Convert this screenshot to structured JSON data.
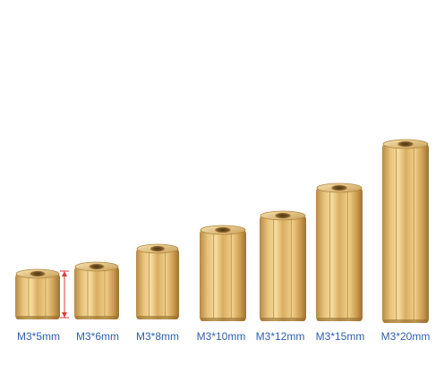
{
  "colors": {
    "brass_light": "#f3d38e",
    "brass_mid": "#d6ab5c",
    "brass_dark": "#9c7230",
    "label_text": "#2f5fb0",
    "measure_marker": "#e23b3b"
  },
  "spacers": [
    {
      "label": "M3*5mm"
    },
    {
      "label": "M3*6mm"
    },
    {
      "label": "M3*8mm"
    },
    {
      "label": "M3*10mm"
    },
    {
      "label": "M3*12mm"
    },
    {
      "label": "M3*15mm"
    },
    {
      "label": "M3*20mm"
    }
  ]
}
